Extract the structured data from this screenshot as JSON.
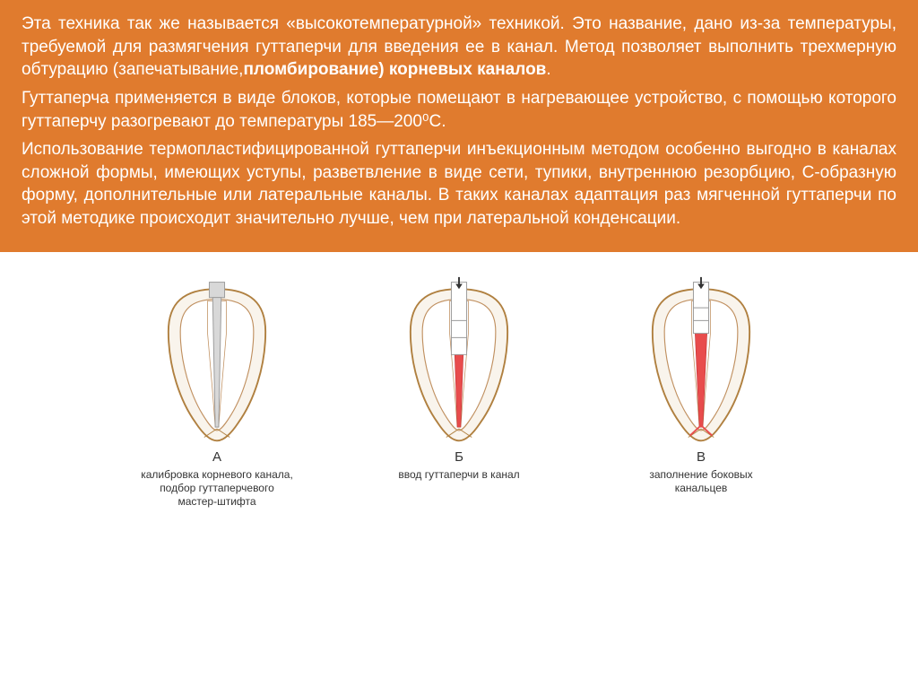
{
  "text": {
    "p1a": "Эта техника так же называется «высокотемпературной» техникой. Это название, дано из-за температуры, требуемой для размягчения гуттаперчи для введения ее в канал. Метод позволяет выполнить трехмерную обтурацию (запечатывание,",
    "p1b": "пломбирование) корневых каналов",
    "p1c": ".",
    "p2": "Гуттаперча применяется в виде блоков, которые помещают в нагревающее устройство, с помощью которого гуттаперчу разогревают до температуры 185—200⁰С.",
    "p3": "Использование термопластифицированной гуттаперчи инъекционным методом особенно выгодно в каналах сложной формы, имеющих уступы, разветвление в виде сети, тупики, внутреннюю резорбцию, С-образную форму, дополнительные или латеральные каналы. В таких каналах адаптация раз мягченной гуттаперчи по этой методике происходит значительно лучше, чем при латеральной конденсации."
  },
  "diagram": {
    "outline_color": "#b08040",
    "inner_stroke": "#c09060",
    "fill_outer": "#f9f4ec",
    "fill_inner": "#ffffff",
    "steel_fill": "#d8d8d8",
    "steel_stroke": "#999999",
    "gutta_red": "#e84c4c",
    "arrow_color": "#333333",
    "items": [
      {
        "letter": "А",
        "caption": "калибровка корневого канала,\nподбор гуттаперчевого\nмастер-штифта",
        "mode": "steel"
      },
      {
        "letter": "Б",
        "caption": "ввод гуттаперчи в канал",
        "mode": "partial"
      },
      {
        "letter": "В",
        "caption": "заполнение боковых\nканальцев",
        "mode": "full"
      }
    ]
  }
}
